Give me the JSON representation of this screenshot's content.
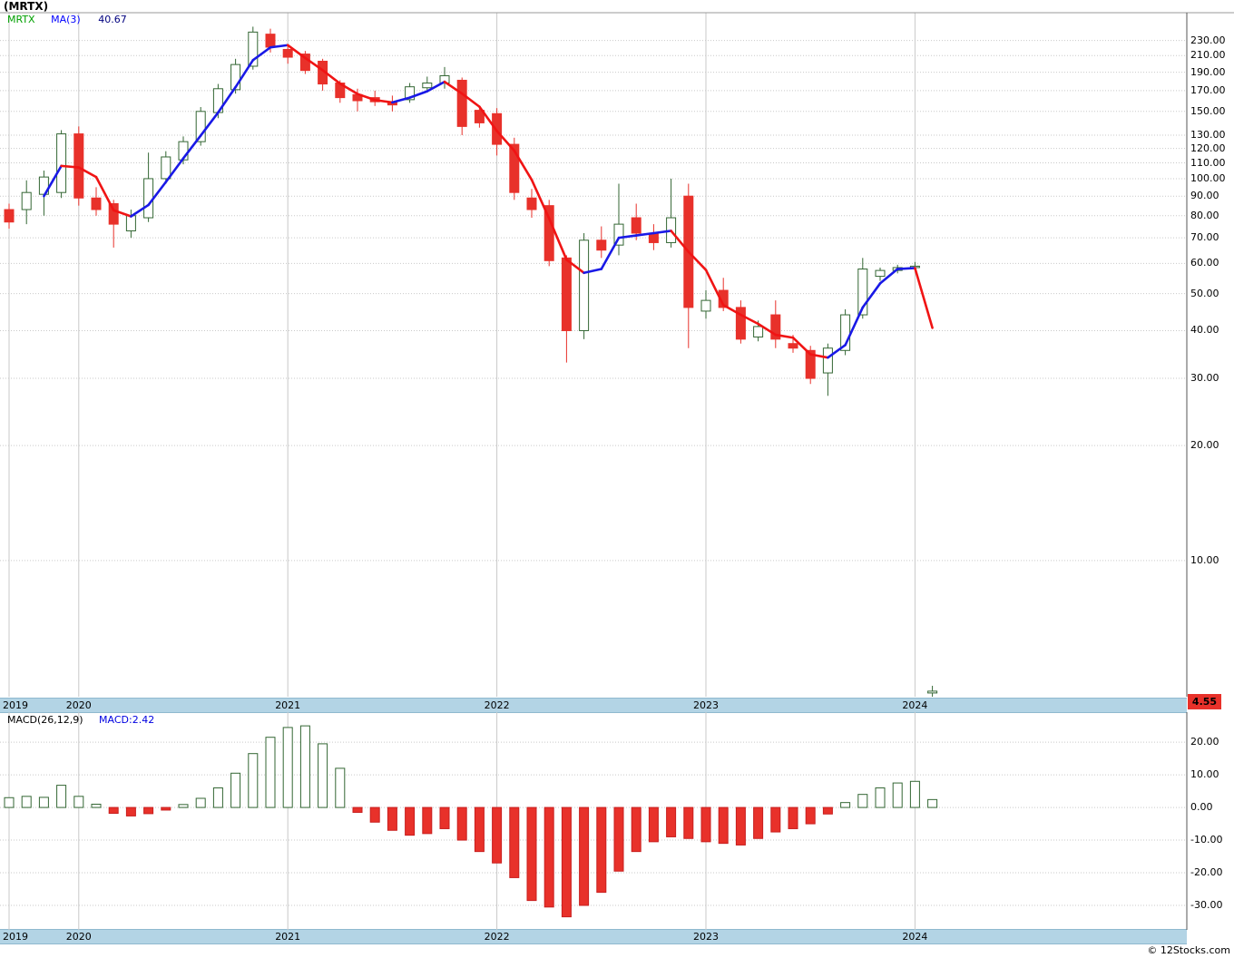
{
  "title": "(MRTX)",
  "credit": "© 12Stocks.com",
  "price_chart": {
    "legend": {
      "symbol": "MRTX",
      "ma_label": "MA(3)",
      "ma_value": "40.67"
    },
    "last_price_label": "4.55"
  },
  "macd_chart": {
    "legend": {
      "formula": "MACD(26,12,9)",
      "value": "MACD:2.42"
    }
  },
  "colors": {
    "up_fill": "#ffffff",
    "up_border": "#336633",
    "down": "#e8312a",
    "down_border": "#c81e1e",
    "ma_up": "#1919e6",
    "ma_down": "#f01414",
    "grid": "#c9c9c9",
    "axis": "#555555",
    "band": "#b3d4e5",
    "badge_bg": "#e8312a"
  },
  "chart_data": [
    {
      "type": "candlestick",
      "symbol": "MRTX",
      "interval": "monthly",
      "title": "(MRTX)",
      "x": [
        "2019-09",
        "2019-10",
        "2019-11",
        "2019-12",
        "2020-01",
        "2020-02",
        "2020-03",
        "2020-04",
        "2020-05",
        "2020-06",
        "2020-07",
        "2020-08",
        "2020-09",
        "2020-10",
        "2020-11",
        "2020-12",
        "2021-01",
        "2021-02",
        "2021-03",
        "2021-04",
        "2021-05",
        "2021-06",
        "2021-07",
        "2021-08",
        "2021-09",
        "2021-10",
        "2021-11",
        "2021-12",
        "2022-01",
        "2022-02",
        "2022-03",
        "2022-04",
        "2022-05",
        "2022-06",
        "2022-07",
        "2022-08",
        "2022-09",
        "2022-10",
        "2022-11",
        "2022-12",
        "2023-01",
        "2023-02",
        "2023-03",
        "2023-04",
        "2023-05",
        "2023-06",
        "2023-07",
        "2023-08",
        "2023-09",
        "2023-10",
        "2023-11",
        "2023-12",
        "2024-01",
        "2024-02"
      ],
      "ohlc": [
        [
          83,
          86,
          74,
          77
        ],
        [
          83,
          99,
          76,
          92
        ],
        [
          91,
          105,
          80,
          101
        ],
        [
          92,
          134,
          89,
          131
        ],
        [
          131,
          137,
          85,
          89
        ],
        [
          89,
          95,
          80,
          83
        ],
        [
          86,
          88,
          66,
          76
        ],
        [
          73,
          83,
          70,
          80
        ],
        [
          79,
          117,
          77,
          100
        ],
        [
          100,
          118,
          97,
          114
        ],
        [
          112,
          129,
          109,
          125
        ],
        [
          125,
          154,
          122,
          150
        ],
        [
          149,
          177,
          144,
          172
        ],
        [
          171,
          206,
          167,
          199
        ],
        [
          197,
          250,
          193,
          242
        ],
        [
          239,
          247,
          214,
          221
        ],
        [
          218,
          224,
          200,
          208
        ],
        [
          212,
          216,
          188,
          192
        ],
        [
          203,
          206,
          170,
          177
        ],
        [
          178,
          181,
          158,
          163
        ],
        [
          166,
          172,
          150,
          160
        ],
        [
          163,
          170,
          155,
          159
        ],
        [
          159,
          165,
          150,
          156
        ],
        [
          161,
          178,
          158,
          174
        ],
        [
          173,
          185,
          169,
          178
        ],
        [
          178,
          196,
          172,
          186
        ],
        [
          181,
          184,
          130,
          137
        ],
        [
          151,
          155,
          136,
          140
        ],
        [
          148,
          153,
          115,
          123
        ],
        [
          123,
          128,
          88,
          92
        ],
        [
          89,
          94,
          79,
          83
        ],
        [
          85,
          88,
          59,
          61
        ],
        [
          62,
          63,
          33,
          40
        ],
        [
          40,
          72,
          38,
          69
        ],
        [
          69,
          75,
          62,
          65
        ],
        [
          67,
          97,
          63,
          76
        ],
        [
          79,
          86,
          69,
          72
        ],
        [
          72,
          76,
          65,
          68
        ],
        [
          68,
          100,
          66,
          79
        ],
        [
          90,
          97,
          36,
          46
        ],
        [
          45,
          51,
          43,
          48
        ],
        [
          51,
          55,
          45,
          46
        ],
        [
          46,
          48,
          37,
          38
        ],
        [
          38.5,
          42.5,
          37.5,
          41
        ],
        [
          44,
          48,
          36,
          38
        ],
        [
          37,
          39,
          35,
          36
        ],
        [
          35.5,
          36.5,
          29,
          30
        ],
        [
          31,
          37,
          27,
          36
        ],
        [
          35.5,
          45.5,
          34.5,
          44
        ],
        [
          44,
          62,
          43,
          58
        ],
        [
          55.5,
          58.5,
          54,
          57.5
        ],
        [
          57.5,
          59.5,
          56.5,
          58.5
        ],
        [
          58.5,
          60.5,
          57.5,
          59
        ],
        [
          4.5,
          4.7,
          4.4,
          4.55
        ]
      ],
      "overlays": [
        {
          "name": "MA(3)",
          "type": "sma",
          "window": 3,
          "source": "close",
          "last_value": 40.67
        }
      ],
      "last_price": 4.55,
      "y_axis": {
        "scale": "log",
        "range": [
          4.4,
          272
        ],
        "ticks": [
          230,
          210,
          190,
          170,
          150,
          130,
          120,
          110,
          100,
          90,
          80,
          70,
          60,
          50,
          40,
          30,
          20,
          10
        ]
      },
      "x_axis": {
        "year_labels": [
          "2019",
          "2020",
          "2021",
          "2022",
          "2023",
          "2024"
        ],
        "year_start_indices": [
          0,
          4,
          16,
          28,
          40,
          52
        ]
      },
      "grid": true,
      "legend_position": "top-left"
    },
    {
      "type": "bar",
      "name": "MACD(26,12,9)",
      "values": [
        3.0,
        3.4,
        3.1,
        6.8,
        3.4,
        1.0,
        -1.8,
        -2.6,
        -1.9,
        -0.8,
        0.9,
        2.8,
        6.0,
        10.5,
        16.5,
        21.5,
        24.5,
        25.0,
        19.5,
        12.0,
        -1.5,
        -4.5,
        -7.0,
        -8.5,
        -8.0,
        -6.5,
        -10.0,
        -13.5,
        -17.0,
        -21.5,
        -28.5,
        -30.5,
        -33.5,
        -30.0,
        -26.0,
        -19.5,
        -13.5,
        -10.5,
        -9.0,
        -9.5,
        -10.5,
        -11.0,
        -11.5,
        -9.5,
        -7.5,
        -6.5,
        -5.0,
        -2.0,
        1.5,
        4.0,
        6.0,
        7.5,
        8.0,
        2.42
      ],
      "last_value": 2.42,
      "y_axis": {
        "scale": "linear",
        "range": [
          -37.5,
          29.2
        ],
        "ticks": [
          20,
          10,
          0,
          -10,
          -20,
          -30
        ]
      },
      "grid": true,
      "legend_position": "top-left"
    }
  ]
}
